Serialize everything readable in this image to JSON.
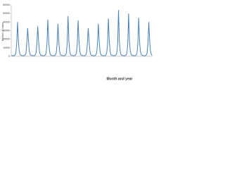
{
  "chart_data": {
    "type": "line",
    "y_label": "Number of cases",
    "x_label": "Month and year",
    "color": "#4a80b8",
    "ylim": [
      0,
      60000
    ],
    "yticks": [
      0,
      10000,
      20000,
      30000,
      40000,
      50000,
      60000
    ],
    "values": [
      1000,
      800,
      700,
      900,
      1500,
      4000,
      15000,
      40000,
      18000,
      6000,
      2000,
      1200,
      1000,
      800,
      700,
      900,
      1500,
      4000,
      15000,
      33000,
      18000,
      6000,
      2000,
      1200,
      1000,
      800,
      700,
      900,
      1500,
      4000,
      15000,
      35000,
      18000,
      6000,
      2000,
      1200,
      1000,
      800,
      700,
      900,
      1500,
      4000,
      15000,
      43000,
      18000,
      6000,
      2000,
      1200,
      1000,
      800,
      700,
      900,
      1500,
      4000,
      15000,
      38000,
      18000,
      6000,
      2000,
      1200,
      1000,
      800,
      700,
      900,
      1500,
      4000,
      15000,
      47000,
      18000,
      6000,
      2000,
      1200,
      1000,
      800,
      700,
      900,
      1500,
      4000,
      15000,
      42000,
      18000,
      6000,
      2000,
      1200,
      1000,
      800,
      700,
      900,
      1500,
      4000,
      15000,
      33000,
      18000,
      6000,
      2000,
      1200,
      1000,
      800,
      700,
      900,
      1500,
      4000,
      15000,
      38000,
      18000,
      6000,
      2000,
      1200,
      1000,
      800,
      700,
      900,
      1500,
      4000,
      15000,
      44000,
      18000,
      6000,
      2000,
      1200,
      1000,
      800,
      700,
      900,
      1500,
      4000,
      15000,
      54000,
      18000,
      6000,
      2000,
      1200,
      1000,
      800,
      700,
      900,
      1500,
      4000,
      15000,
      50000,
      18000,
      6000,
      2000,
      1200,
      1000,
      800,
      700,
      900,
      1500,
      4000,
      15000,
      45000,
      18000,
      6000,
      2000,
      1200,
      1000,
      800,
      700,
      900,
      1500,
      4000,
      15000,
      40000,
      18000,
      6000,
      2000,
      1200
    ]
  }
}
